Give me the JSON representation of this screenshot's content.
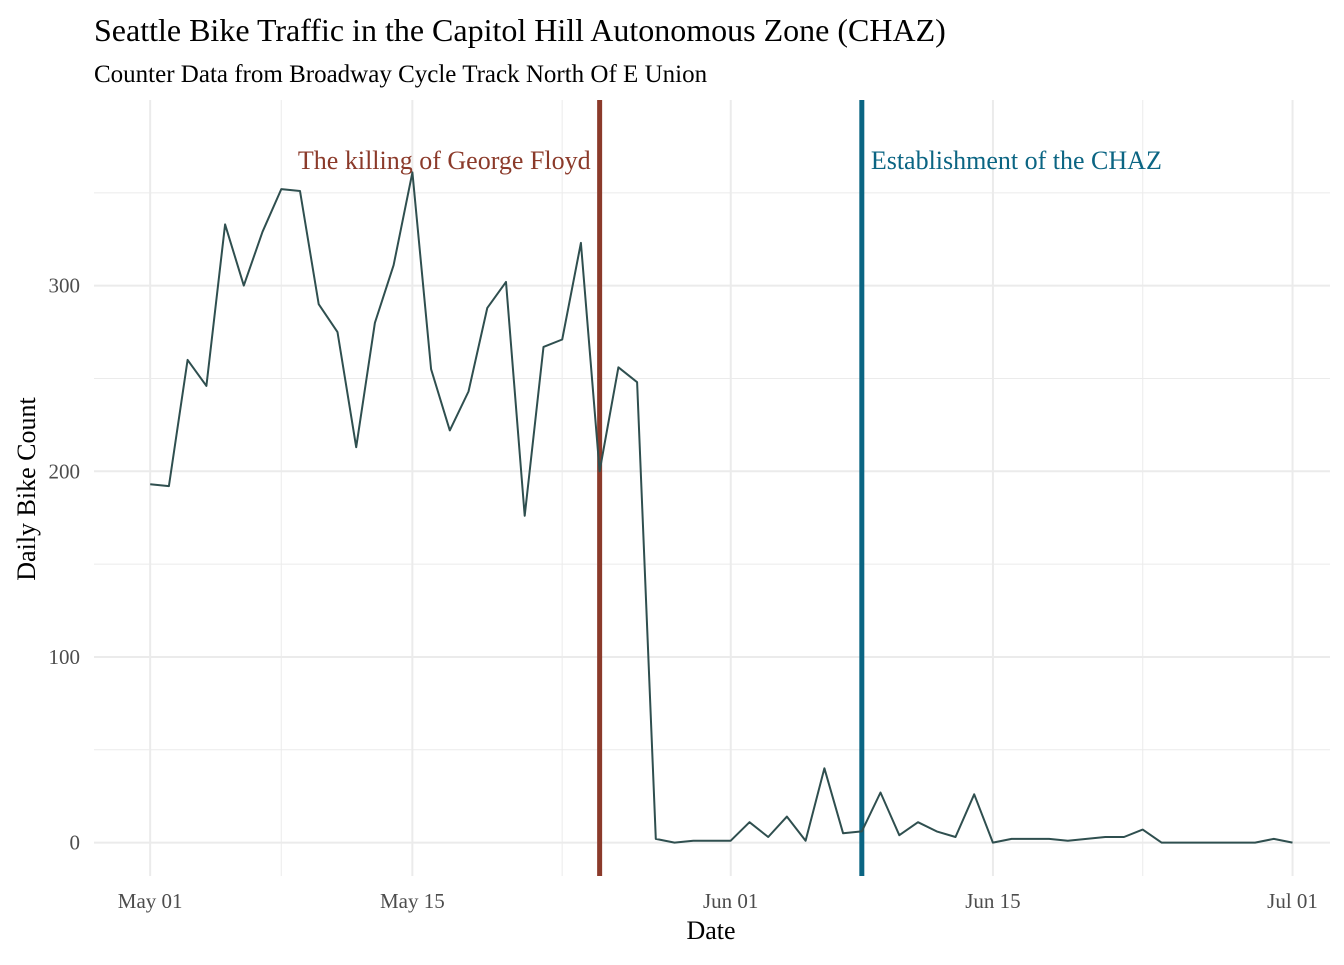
{
  "chart_data": {
    "type": "line",
    "title": "Seattle Bike Traffic in the Capitol Hill Autonomous Zone (CHAZ)",
    "subtitle": "Counter Data from Broadway Cycle Track North Of E Union",
    "xlabel": "Date",
    "ylabel": "Daily Bike Count",
    "x_axis_kind": "date",
    "xlim": [
      "2020-04-28",
      "2020-07-03"
    ],
    "ylim": [
      -18,
      400
    ],
    "x_ticks": [
      {
        "date": "2020-05-01",
        "label": "May 01"
      },
      {
        "date": "2020-05-15",
        "label": "May 15"
      },
      {
        "date": "2020-06-01",
        "label": "Jun 01"
      },
      {
        "date": "2020-06-15",
        "label": "Jun 15"
      },
      {
        "date": "2020-07-01",
        "label": "Jul 01"
      }
    ],
    "x_minor_grid": [
      "2020-05-08",
      "2020-05-23",
      "2020-06-08",
      "2020-06-23"
    ],
    "y_ticks": [
      0,
      100,
      200,
      300
    ],
    "y_minor_grid": [
      50,
      150,
      250,
      350
    ],
    "grid": true,
    "legend": "none",
    "colors": {
      "line": "#2f4f4f",
      "grid": "#ebebeb",
      "event_floyd": "#8b3a2a",
      "event_chaz": "#0b6583",
      "tick_text": "#4d4d4d",
      "title_text": "#000000"
    },
    "events": [
      {
        "date": "2020-05-25",
        "label": "The killing of George Floyd",
        "color": "#8b3a2a",
        "label_side": "left"
      },
      {
        "date": "2020-06-08",
        "label": "Establishment of the CHAZ",
        "color": "#0b6583",
        "label_side": "right"
      }
    ],
    "series": [
      {
        "x": [
          "2020-05-01",
          "2020-05-02",
          "2020-05-03",
          "2020-05-04",
          "2020-05-05",
          "2020-05-06",
          "2020-05-07",
          "2020-05-08",
          "2020-05-09",
          "2020-05-10",
          "2020-05-11",
          "2020-05-12",
          "2020-05-13",
          "2020-05-14",
          "2020-05-15",
          "2020-05-16",
          "2020-05-17",
          "2020-05-18",
          "2020-05-19",
          "2020-05-20",
          "2020-05-21",
          "2020-05-22",
          "2020-05-23",
          "2020-05-24",
          "2020-05-25",
          "2020-05-26",
          "2020-05-27",
          "2020-05-28",
          "2020-05-29",
          "2020-05-30",
          "2020-05-31",
          "2020-06-01",
          "2020-06-02",
          "2020-06-03",
          "2020-06-04",
          "2020-06-05",
          "2020-06-06",
          "2020-06-07",
          "2020-06-08",
          "2020-06-09",
          "2020-06-10",
          "2020-06-11",
          "2020-06-12",
          "2020-06-13",
          "2020-06-14",
          "2020-06-15",
          "2020-06-16",
          "2020-06-17",
          "2020-06-18",
          "2020-06-19",
          "2020-06-20",
          "2020-06-21",
          "2020-06-22",
          "2020-06-23",
          "2020-06-24",
          "2020-06-25",
          "2020-06-26",
          "2020-06-27",
          "2020-06-28",
          "2020-06-29",
          "2020-06-30",
          "2020-07-01"
        ],
        "y": [
          193,
          192,
          260,
          246,
          333,
          300,
          329,
          352,
          351,
          290,
          275,
          213,
          280,
          311,
          361,
          255,
          222,
          243,
          288,
          302,
          176,
          267,
          271,
          323,
          200,
          256,
          248,
          2,
          0,
          1,
          1,
          1,
          11,
          3,
          14,
          1,
          40,
          5,
          6,
          27,
          4,
          11,
          6,
          3,
          26,
          0,
          2,
          2,
          2,
          1,
          2,
          3,
          3,
          7,
          0,
          0,
          0,
          0,
          0,
          0,
          2,
          0
        ]
      }
    ]
  }
}
